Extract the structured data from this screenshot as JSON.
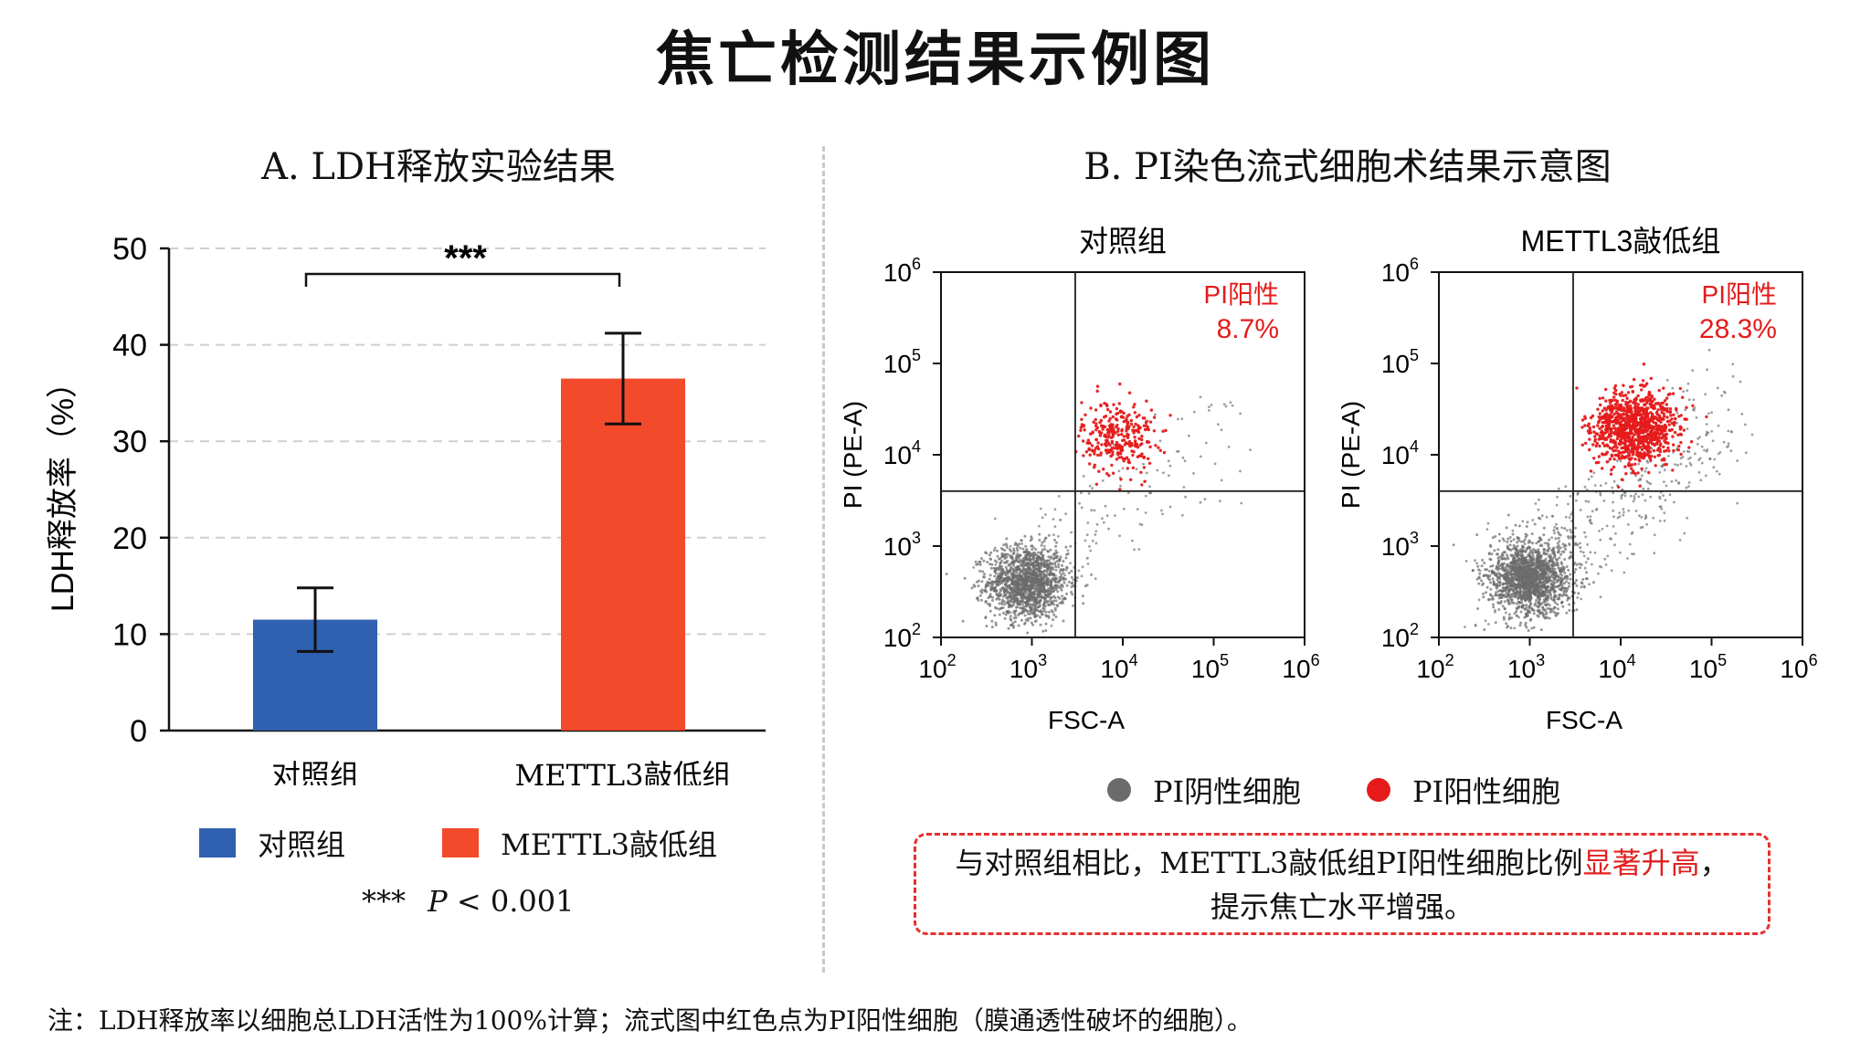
{
  "title": "焦亡检测结果示例图",
  "panel_a": {
    "title": "A. LDH释放实验结果",
    "legend": [
      {
        "label": "对照组",
        "color": "#3060b0"
      },
      {
        "label": "METTL3敲低组",
        "color": "#f24a2a"
      }
    ],
    "significance_note_stars": "***",
    "significance_note_p": "P",
    "significance_note_rest": "< 0.001"
  },
  "panel_b": {
    "title": "B. PI染色流式细胞术结果示意图",
    "legend": [
      {
        "label": "PI阴性细胞",
        "color": "#6b6b6b"
      },
      {
        "label": "PI阳性细胞",
        "color": "#e51b1b"
      }
    ],
    "conclusion": {
      "line1_prefix": "与对照组相比，METTL3敲低组PI阳性细胞比例",
      "line1_highlight": "显著升高",
      "line1_suffix": "，",
      "line2": "提示焦亡水平增强。"
    }
  },
  "footnote": "注：LDH释放率以细胞总LDH活性为100%计算；流式图中红色点为PI阳性细胞（膜通透性破坏的细胞）。",
  "chart_data": [
    {
      "type": "bar",
      "categories": [
        "对照组",
        "METTL3敲低组"
      ],
      "values": [
        11.5,
        36.5
      ],
      "errors": [
        3.3,
        4.7
      ],
      "colors": [
        "#3060b0",
        "#f24a2a"
      ],
      "ylabel": "LDH释放率（%）",
      "ylim": [
        0,
        50
      ],
      "yticks": [
        0,
        10,
        20,
        30,
        40,
        50
      ],
      "grid": true,
      "significance": {
        "label": "***",
        "between": [
          0,
          1
        ]
      }
    },
    {
      "type": "scatter",
      "title": "对照组",
      "xlabel": "FSC-A",
      "ylabel": "PI (PE-A)",
      "xscale": "log",
      "yscale": "log",
      "xlim": [
        100,
        1000000
      ],
      "ylim": [
        100,
        1000000
      ],
      "tick_exponents": [
        2,
        3,
        4,
        5,
        6
      ],
      "gate": {
        "x": 3000,
        "y": 4000
      },
      "quadrant_label": "PI阳性",
      "quadrant_value": "8.7%",
      "series": [
        {
          "name": "PI阴性细胞",
          "center_log": [
            2.95,
            2.6
          ],
          "spread_log": [
            0.22,
            0.2
          ],
          "count": 1500,
          "background_count": 160
        },
        {
          "name": "PI阳性细胞",
          "center_log": [
            3.95,
            4.2
          ],
          "spread_log": [
            0.2,
            0.2
          ],
          "count": 300
        }
      ]
    },
    {
      "type": "scatter",
      "title": "METTL3敲低组",
      "xlabel": "FSC-A",
      "ylabel": "PI (PE-A)",
      "xscale": "log",
      "yscale": "log",
      "xlim": [
        100,
        1000000
      ],
      "ylim": [
        100,
        1000000
      ],
      "tick_exponents": [
        2,
        3,
        4,
        5,
        6
      ],
      "gate": {
        "x": 3000,
        "y": 4000
      },
      "quadrant_label": "PI阳性",
      "quadrant_value": "28.3%",
      "series": [
        {
          "name": "PI阴性细胞",
          "center_log": [
            3.0,
            2.65
          ],
          "spread_log": [
            0.22,
            0.2
          ],
          "count": 1700,
          "background_count": 420
        },
        {
          "name": "PI阳性细胞",
          "center_log": [
            4.15,
            4.3
          ],
          "spread_log": [
            0.24,
            0.2
          ],
          "count": 1000
        }
      ]
    }
  ]
}
